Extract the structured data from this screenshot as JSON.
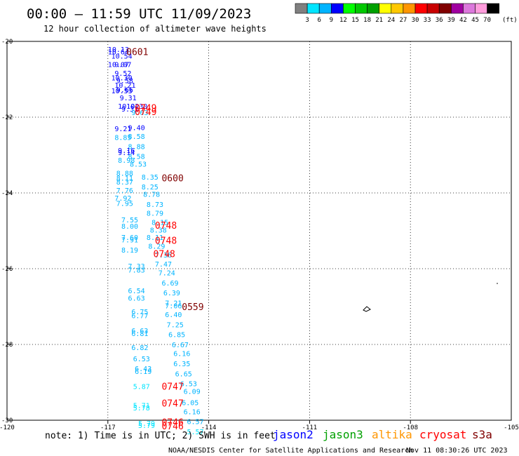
{
  "title": "00:00 – 11:59 UTC 11/09/2023",
  "subtitle": "12 hour collection of altimeter wave heights",
  "note": "note: 1) Time is in UTC; 2) SWH is in feet",
  "credit": "NOAA/NESDIS Center for Satellite Applications and Research",
  "generated": "Nov 11 08:30:26 UTC 2023",
  "colorbar": {
    "unit": "(ft)",
    "labels": [
      "3",
      "6",
      "9",
      "12",
      "15",
      "18",
      "21",
      "24",
      "27",
      "30",
      "33",
      "36",
      "39",
      "42",
      "45",
      "70"
    ],
    "colors": [
      "#808080",
      "#00e5ff",
      "#00b4ff",
      "#0000ff",
      "#00ff00",
      "#00c800",
      "#00a000",
      "#ffff00",
      "#ffc800",
      "#ff9600",
      "#ff0000",
      "#c80000",
      "#800000",
      "#a000a0",
      "#dc78dc",
      "#ff9cdc",
      "#000000"
    ]
  },
  "satellites": [
    {
      "name": "jason2",
      "color": "#0000ff"
    },
    {
      "name": "jason3",
      "color": "#00a000"
    },
    {
      "name": "altika",
      "color": "#ff9600"
    },
    {
      "name": "cryosat",
      "color": "#ff0000"
    },
    {
      "name": "s3a",
      "color": "#800000"
    }
  ],
  "chart_data": {
    "type": "scatter",
    "title": "00:00 – 11:59 UTC 11/09/2023",
    "subtitle": "12 hour collection of altimeter wave heights",
    "xlabel": "",
    "ylabel": "",
    "xlim": [
      -120,
      -105
    ],
    "ylim": [
      -30,
      -20
    ],
    "xticks": [
      "-120",
      "-117",
      "-114",
      "-111",
      "-108",
      "-105"
    ],
    "yticks": [
      "-20",
      "-22",
      "-24",
      "-26",
      "-28",
      "-30"
    ],
    "grid": true,
    "values": [
      {
        "x": -117.0,
        "y": -20.2,
        "v": "10.13",
        "c": "#0000ff"
      },
      {
        "x": -117.0,
        "y": -20.27,
        "v": "10.64",
        "c": "#0000ff"
      },
      {
        "x": -116.9,
        "y": -20.38,
        "v": "10.54",
        "c": "#0000ff"
      },
      {
        "x": -117.0,
        "y": -20.6,
        "v": "10.07",
        "c": "#0000ff"
      },
      {
        "x": -116.8,
        "y": -20.6,
        "v": "9.07",
        "c": "#0000ff"
      },
      {
        "x": -116.8,
        "y": -20.83,
        "v": "9.52",
        "c": "#0000ff"
      },
      {
        "x": -116.9,
        "y": -20.95,
        "v": "10.30",
        "c": "#0000ff"
      },
      {
        "x": -116.75,
        "y": -21.03,
        "v": "9.58",
        "c": "#0000ff"
      },
      {
        "x": -116.8,
        "y": -21.15,
        "v": "10.21",
        "c": "#0000ff"
      },
      {
        "x": -116.75,
        "y": -21.27,
        "v": "9.66",
        "c": "#0000ff"
      },
      {
        "x": -116.9,
        "y": -21.3,
        "v": "10.53",
        "c": "#0000ff"
      },
      {
        "x": -116.65,
        "y": -21.48,
        "v": "9.31",
        "c": "#0000ff"
      },
      {
        "x": -116.7,
        "y": -21.7,
        "v": "10.02",
        "c": "#0000ff"
      },
      {
        "x": -116.45,
        "y": -21.7,
        "v": "10.30",
        "c": "#0000ff"
      },
      {
        "x": -116.6,
        "y": -21.78,
        "v": "9.33",
        "c": "#0000ff"
      },
      {
        "x": -116.3,
        "y": -21.87,
        "v": "9.63",
        "c": "#00b4ff"
      },
      {
        "x": -116.8,
        "y": -22.3,
        "v": "9.21",
        "c": "#0000ff"
      },
      {
        "x": -116.4,
        "y": -22.27,
        "v": "9.40",
        "c": "#0000ff"
      },
      {
        "x": -116.8,
        "y": -22.53,
        "v": "8.85",
        "c": "#00b4ff"
      },
      {
        "x": -116.4,
        "y": -22.5,
        "v": "8.58",
        "c": "#00b4ff"
      },
      {
        "x": -116.4,
        "y": -22.77,
        "v": "8.88",
        "c": "#00b4ff"
      },
      {
        "x": -116.7,
        "y": -22.87,
        "v": "9.16",
        "c": "#0000ff"
      },
      {
        "x": -116.7,
        "y": -22.93,
        "v": "9.14",
        "c": "#0000ff"
      },
      {
        "x": -116.4,
        "y": -23.03,
        "v": "8.58",
        "c": "#00b4ff"
      },
      {
        "x": -116.7,
        "y": -23.13,
        "v": "8.98",
        "c": "#00b4ff"
      },
      {
        "x": -116.35,
        "y": -23.23,
        "v": "8.53",
        "c": "#00b4ff"
      },
      {
        "x": -116.75,
        "y": -23.47,
        "v": "8.88",
        "c": "#00b4ff"
      },
      {
        "x": -116.0,
        "y": -23.57,
        "v": "8.35",
        "c": "#00b4ff"
      },
      {
        "x": -116.75,
        "y": -23.6,
        "v": "8.11",
        "c": "#00b4ff"
      },
      {
        "x": -116.75,
        "y": -23.7,
        "v": "8.37",
        "c": "#00b4ff"
      },
      {
        "x": -116.0,
        "y": -23.83,
        "v": "8.25",
        "c": "#00b4ff"
      },
      {
        "x": -116.75,
        "y": -23.93,
        "v": "7.76",
        "c": "#00b4ff"
      },
      {
        "x": -115.95,
        "y": -24.03,
        "v": "8.78",
        "c": "#00b4ff"
      },
      {
        "x": -116.8,
        "y": -24.13,
        "v": "7.92",
        "c": "#00b4ff"
      },
      {
        "x": -116.75,
        "y": -24.27,
        "v": "7.95",
        "c": "#00b4ff"
      },
      {
        "x": -115.85,
        "y": -24.3,
        "v": "8.73",
        "c": "#00b4ff"
      },
      {
        "x": -115.85,
        "y": -24.53,
        "v": "8.79",
        "c": "#00b4ff"
      },
      {
        "x": -116.6,
        "y": -24.7,
        "v": "7.55",
        "c": "#00b4ff"
      },
      {
        "x": -115.7,
        "y": -24.77,
        "v": "8.15",
        "c": "#00b4ff"
      },
      {
        "x": -116.6,
        "y": -24.87,
        "v": "8.00",
        "c": "#00b4ff"
      },
      {
        "x": -115.75,
        "y": -24.97,
        "v": "8.38",
        "c": "#00b4ff"
      },
      {
        "x": -116.6,
        "y": -25.17,
        "v": "7.60",
        "c": "#00b4ff"
      },
      {
        "x": -115.85,
        "y": -25.17,
        "v": "8.11",
        "c": "#00b4ff"
      },
      {
        "x": -116.6,
        "y": -25.23,
        "v": "7.91",
        "c": "#00b4ff"
      },
      {
        "x": -115.8,
        "y": -25.4,
        "v": "8.29",
        "c": "#00b4ff"
      },
      {
        "x": -116.6,
        "y": -25.5,
        "v": "8.19",
        "c": "#00b4ff"
      },
      {
        "x": -115.6,
        "y": -25.63,
        "v": "7.36",
        "c": "#00b4ff"
      },
      {
        "x": -115.6,
        "y": -25.87,
        "v": "7.47",
        "c": "#00b4ff"
      },
      {
        "x": -116.4,
        "y": -25.93,
        "v": "7.33",
        "c": "#00b4ff"
      },
      {
        "x": -116.4,
        "y": -26.03,
        "v": "7.83",
        "c": "#00b4ff"
      },
      {
        "x": -115.5,
        "y": -26.1,
        "v": "7.24",
        "c": "#00b4ff"
      },
      {
        "x": -115.4,
        "y": -26.37,
        "v": "6.69",
        "c": "#00b4ff"
      },
      {
        "x": -116.4,
        "y": -26.57,
        "v": "6.54",
        "c": "#00b4ff"
      },
      {
        "x": -115.35,
        "y": -26.63,
        "v": "6.39",
        "c": "#00b4ff"
      },
      {
        "x": -116.4,
        "y": -26.77,
        "v": "6.63",
        "c": "#00b4ff"
      },
      {
        "x": -115.3,
        "y": -26.9,
        "v": "7.21",
        "c": "#00b4ff"
      },
      {
        "x": -115.3,
        "y": -26.97,
        "v": "7.06",
        "c": "#00b4ff"
      },
      {
        "x": -116.3,
        "y": -27.13,
        "v": "6.75",
        "c": "#00b4ff"
      },
      {
        "x": -116.3,
        "y": -27.23,
        "v": "6.77",
        "c": "#00b4ff"
      },
      {
        "x": -115.3,
        "y": -27.2,
        "v": "6.40",
        "c": "#00b4ff"
      },
      {
        "x": -115.25,
        "y": -27.47,
        "v": "7.25",
        "c": "#00b4ff"
      },
      {
        "x": -116.3,
        "y": -27.63,
        "v": "6.63",
        "c": "#00b4ff"
      },
      {
        "x": -116.3,
        "y": -27.7,
        "v": "6.81",
        "c": "#00b4ff"
      },
      {
        "x": -115.2,
        "y": -27.73,
        "v": "6.85",
        "c": "#00b4ff"
      },
      {
        "x": -115.1,
        "y": -28.0,
        "v": "6.67",
        "c": "#00b4ff"
      },
      {
        "x": -116.3,
        "y": -28.07,
        "v": "6.82",
        "c": "#00b4ff"
      },
      {
        "x": -115.05,
        "y": -28.23,
        "v": "6.16",
        "c": "#00b4ff"
      },
      {
        "x": -116.25,
        "y": -28.37,
        "v": "6.53",
        "c": "#00b4ff"
      },
      {
        "x": -115.05,
        "y": -28.5,
        "v": "6.35",
        "c": "#00b4ff"
      },
      {
        "x": -116.2,
        "y": -28.63,
        "v": "6.43",
        "c": "#00b4ff"
      },
      {
        "x": -116.2,
        "y": -28.7,
        "v": "6.19",
        "c": "#00b4ff"
      },
      {
        "x": -115.0,
        "y": -28.77,
        "v": "6.65",
        "c": "#00b4ff"
      },
      {
        "x": -114.85,
        "y": -29.03,
        "v": "6.53",
        "c": "#00b4ff"
      },
      {
        "x": -116.25,
        "y": -29.1,
        "v": "5.87",
        "c": "#00e5ff"
      },
      {
        "x": -114.75,
        "y": -29.23,
        "v": "6.09",
        "c": "#00b4ff"
      },
      {
        "x": -114.8,
        "y": -29.53,
        "v": "6.05",
        "c": "#00b4ff"
      },
      {
        "x": -116.25,
        "y": -29.6,
        "v": "5.71",
        "c": "#00e5ff"
      },
      {
        "x": -116.25,
        "y": -29.67,
        "v": "5.78",
        "c": "#00e5ff"
      },
      {
        "x": -114.75,
        "y": -29.77,
        "v": "6.16",
        "c": "#00b4ff"
      },
      {
        "x": -114.65,
        "y": -30.03,
        "v": "6.57",
        "c": "#00b4ff"
      },
      {
        "x": -116.1,
        "y": -30.07,
        "v": "5.79",
        "c": "#00e5ff"
      },
      {
        "x": -116.1,
        "y": -30.13,
        "v": "5.79",
        "c": "#00e5ff"
      },
      {
        "x": -114.65,
        "y": -30.3,
        "v": "5.57",
        "c": "#00e5ff"
      }
    ],
    "annotations": [
      {
        "x": -116.45,
        "y": -20.27,
        "text": "0601",
        "color": "#800000"
      },
      {
        "x": -116.2,
        "y": -21.75,
        "text": "0749",
        "color": "#ff0000"
      },
      {
        "x": -116.2,
        "y": -21.85,
        "text": "0749",
        "color": "#ff0000"
      },
      {
        "x": -115.4,
        "y": -23.6,
        "text": "0600",
        "color": "#800000"
      },
      {
        "x": -115.6,
        "y": -24.85,
        "text": "0748",
        "color": "#ff0000"
      },
      {
        "x": -115.6,
        "y": -25.25,
        "text": "0748",
        "color": "#ff0000"
      },
      {
        "x": -115.65,
        "y": -25.6,
        "text": "0748",
        "color": "#ff0000"
      },
      {
        "x": -114.8,
        "y": -27.0,
        "text": "0559",
        "color": "#800000"
      },
      {
        "x": -115.4,
        "y": -29.1,
        "text": "0747",
        "color": "#ff0000"
      },
      {
        "x": -115.4,
        "y": -29.55,
        "text": "0747",
        "color": "#ff0000"
      },
      {
        "x": -115.4,
        "y": -30.05,
        "text": "0746",
        "color": "#ff0000"
      },
      {
        "x": -115.4,
        "y": -30.15,
        "text": "0746",
        "color": "#ff0000"
      }
    ]
  }
}
